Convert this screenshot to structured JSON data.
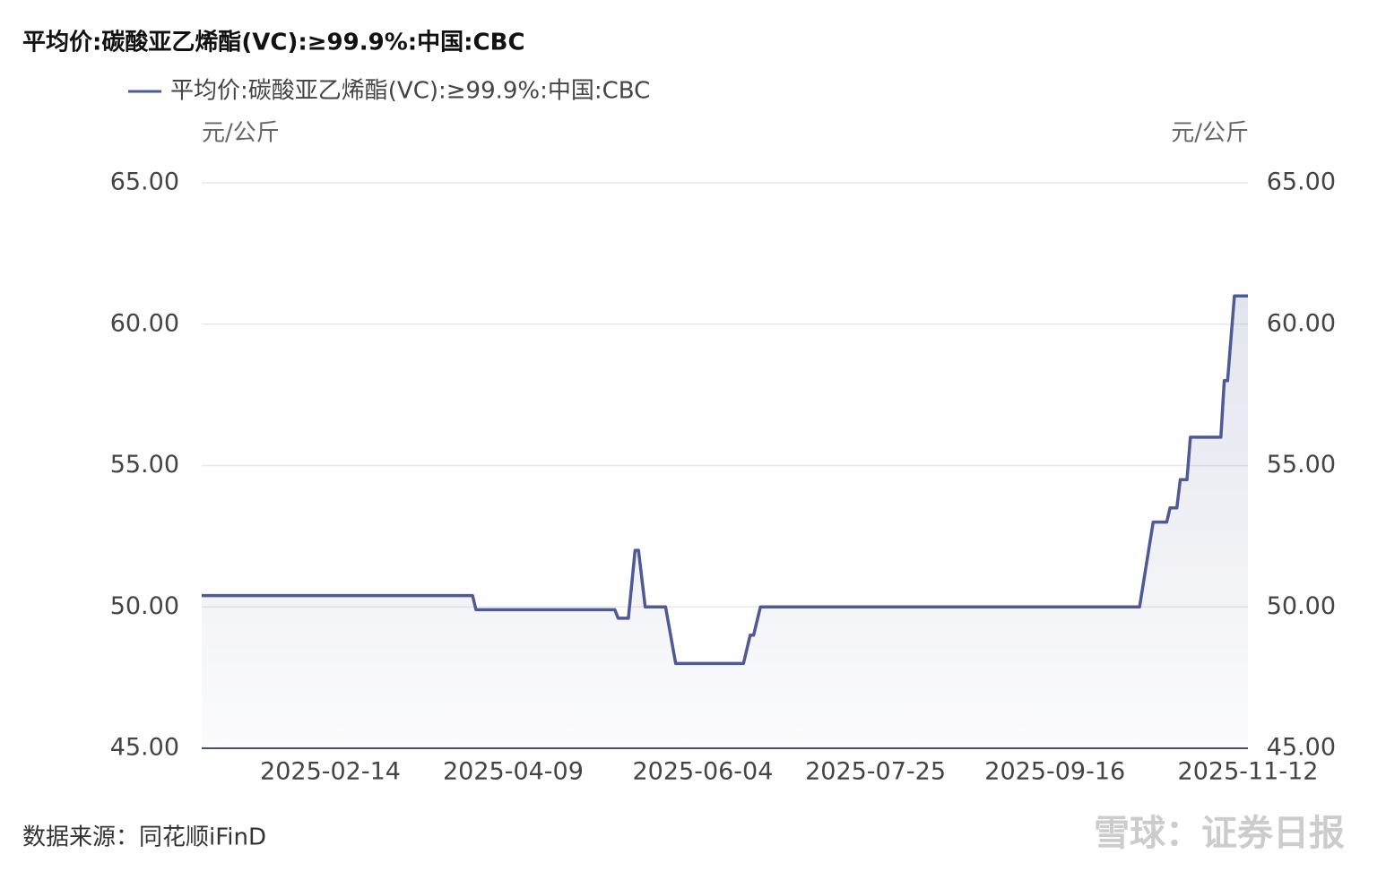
{
  "chart_data": {
    "type": "line",
    "title": "平均价:碳酸亚乙烯酯(VC):≥99.9%:中国:CBC",
    "y_label": "元/公斤",
    "y2_label": "元/公斤",
    "x": [
      "2025-01-07",
      "2025-03-28",
      "2025-03-29",
      "2025-05-09",
      "2025-05-10",
      "2025-05-13",
      "2025-05-15",
      "2025-05-16",
      "2025-05-18",
      "2025-05-24",
      "2025-05-27",
      "2025-06-16",
      "2025-06-18",
      "2025-06-19",
      "2025-06-21",
      "2025-10-11",
      "2025-10-15",
      "2025-10-19",
      "2025-10-20",
      "2025-10-22",
      "2025-10-23",
      "2025-10-25",
      "2025-10-26",
      "2025-11-04",
      "2025-11-05",
      "2025-11-06",
      "2025-11-08",
      "2025-11-12"
    ],
    "series": [
      {
        "name": "平均价:碳酸亚乙烯酯(VC):≥99.9%:中国:CBC",
        "color": "#4e5a96",
        "values": [
          50.4,
          50.4,
          49.9,
          49.9,
          49.6,
          49.6,
          52,
          52,
          50,
          50,
          48,
          48,
          49,
          49,
          50,
          50,
          53,
          53,
          53.5,
          53.5,
          54.5,
          54.5,
          56,
          56,
          58,
          58,
          61,
          61
        ]
      }
    ],
    "xlim": [
      "2025-01-07",
      "2025-11-12"
    ],
    "xticks": [
      "2025-02-14",
      "2025-04-09",
      "2025-06-04",
      "2025-07-25",
      "2025-09-16",
      "2025-11-12"
    ],
    "ylim": [
      45,
      65
    ],
    "yticks": [
      {
        "value": 45,
        "label": "45.00"
      },
      {
        "value": 50,
        "label": "50.00"
      },
      {
        "value": 55,
        "label": "55.00"
      },
      {
        "value": 60,
        "label": "60.00"
      },
      {
        "value": 65,
        "label": "65.00"
      }
    ],
    "y2lim": [
      45,
      65
    ],
    "y2ticks": [
      {
        "value": 45,
        "label": "45.00"
      },
      {
        "value": 50,
        "label": "50.00"
      },
      {
        "value": 55,
        "label": "55.00"
      },
      {
        "value": 60,
        "label": "60.00"
      },
      {
        "value": 65,
        "label": "65.00"
      }
    ],
    "grid": true,
    "area_fill": true,
    "source": "数据来源：同花顺iFinD",
    "watermark": "雪球：证券日报"
  }
}
